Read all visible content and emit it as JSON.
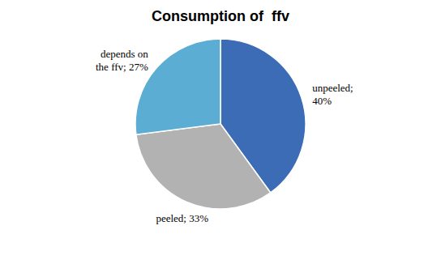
{
  "chart_data": {
    "type": "pie",
    "title": "Consumption of  ffv",
    "values": [
      40,
      33,
      27
    ],
    "value_labels": [
      "unpeeled;\n40%",
      "peeled; 33%",
      "depends on\nthe ffv; 27%"
    ],
    "colors": [
      "#3b6cb5",
      "#b2b2b2",
      "#5badd4"
    ]
  }
}
